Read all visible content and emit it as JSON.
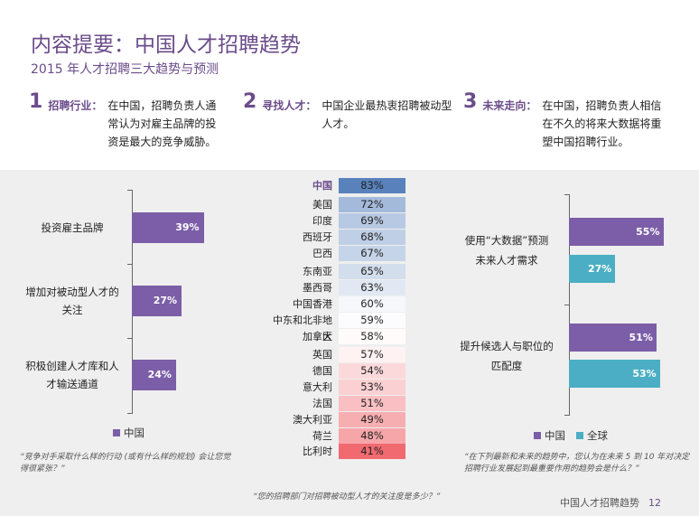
{
  "title": "内容提要：中国人才招聘趋势",
  "subtitle": "2015 年人才招聘三大趋势与预测",
  "trends": [
    {
      "num": "1",
      "head": "招聘行业：",
      "body": "在中国，招聘负责人通常认为对雇主品牌的投资是最大的竞争威胁。"
    },
    {
      "num": "2",
      "head": "寻找人才：",
      "body": "中国企业最热衷招聘被动型人才。"
    },
    {
      "num": "3",
      "head": "未来走向：",
      "body": "在中国，招聘负责人相信在不久的将来大数据将重塑中国招聘行业。"
    }
  ],
  "colors": {
    "china": "#7b5ea7",
    "global": "#4baec4",
    "accent": "#6b4c8a"
  },
  "chart_data": [
    {
      "type": "bar",
      "orientation": "horizontal",
      "categories": [
        "投资雇主品牌",
        "增加对被动型人才的关注",
        "积极创建人才库和人才输送通道"
      ],
      "category_lines": [
        [
          "投资雇主品牌"
        ],
        [
          "增加对被动型人才的",
          "关注"
        ],
        [
          "积极创建人才库和人",
          "才输送通道"
        ]
      ],
      "series": [
        {
          "name": "中国",
          "values": [
            39,
            27,
            24
          ]
        }
      ],
      "value_labels": [
        "39%",
        "27%",
        "24%"
      ],
      "xlim": [
        0,
        100
      ],
      "legend": "中国",
      "note": "“竞争对手采取什么样的行动 (或有什么样的规划) 会让您觉得很紧张？”"
    },
    {
      "type": "table",
      "rows": [
        {
          "country": "中国",
          "label": "83%",
          "value": 83,
          "highlight": true
        },
        {
          "country": "美国",
          "label": "72%",
          "value": 72
        },
        {
          "country": "印度",
          "label": "69%",
          "value": 69
        },
        {
          "country": "西班牙",
          "label": "68%",
          "value": 68
        },
        {
          "country": "巴西",
          "label": "67%",
          "value": 67
        },
        {
          "country": "东南亚",
          "label": "65%",
          "value": 65
        },
        {
          "country": "墨西哥",
          "label": "63%",
          "value": 63
        },
        {
          "country": "中国香港",
          "label": "60%",
          "value": 60
        },
        {
          "country": "中东和北非地区",
          "label": "59%",
          "value": 59
        },
        {
          "country": "加拿大",
          "label": "58%",
          "value": 58
        },
        {
          "country": "英国",
          "label": "57%",
          "value": 57
        },
        {
          "country": "德国",
          "label": "54%",
          "value": 54
        },
        {
          "country": "意大利",
          "label": "53%",
          "value": 53
        },
        {
          "country": "法国",
          "label": "51%",
          "value": 51
        },
        {
          "country": "澳大利亚",
          "label": "49%",
          "value": 49
        },
        {
          "country": "荷兰",
          "label": "48%",
          "value": 48
        },
        {
          "country": "比利时",
          "label": "41%",
          "value": 41
        }
      ],
      "note": "“您的招聘部门对招聘被动型人才的关注度是多少？”"
    },
    {
      "type": "bar",
      "orientation": "horizontal",
      "categories": [
        "使用“大数据”预测未来人才需求",
        "提升候选人与职位的匹配度"
      ],
      "category_lines": [
        [
          "使用“大数据”预测",
          "未来人才需求"
        ],
        [
          "提升候选人与职位的",
          "匹配度"
        ]
      ],
      "series": [
        {
          "name": "中国",
          "values": [
            55,
            51
          ],
          "labels": [
            "55%",
            "51%"
          ]
        },
        {
          "name": "全球",
          "values": [
            27,
            53
          ],
          "labels": [
            "27%",
            "53%"
          ]
        }
      ],
      "xlim": [
        0,
        100
      ],
      "legend": [
        "中国",
        "全球"
      ],
      "note": "“在下列最新和未来的趋势中，您认为在未来 5 到 10 年对决定招聘行业发展起到最重要作用的趋势会是什么？”"
    }
  ],
  "footer": {
    "text": "中国人才招聘趋势",
    "page": "12"
  }
}
